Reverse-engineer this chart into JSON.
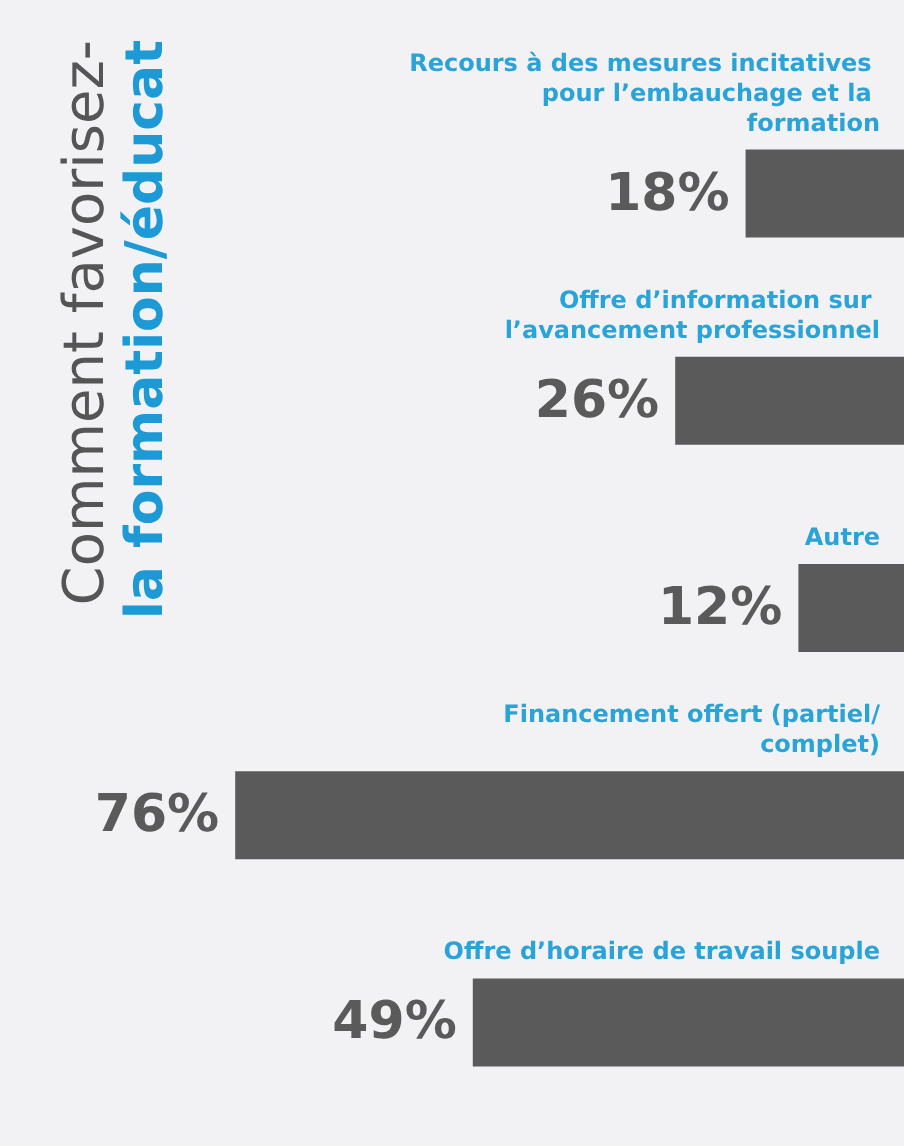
{
  "chart_data": {
    "type": "bar",
    "orientation": "horizontal",
    "title": "Comment favorisez-",
    "subtitle": "la formation/éducat",
    "categories": [
      "Recours à des mesures incitatives pour l’embauchage et la formation",
      "Offre d’information sur l’avancement professionnel",
      "Autre",
      "Financement offert (partiel/complet)",
      "Offre d’horaire de travail souple"
    ],
    "values": [
      18,
      26,
      12,
      76,
      49
    ],
    "value_labels": [
      "18%",
      "26%",
      "12%",
      "76%",
      "49%"
    ],
    "color": "#5a5a5a"
  }
}
